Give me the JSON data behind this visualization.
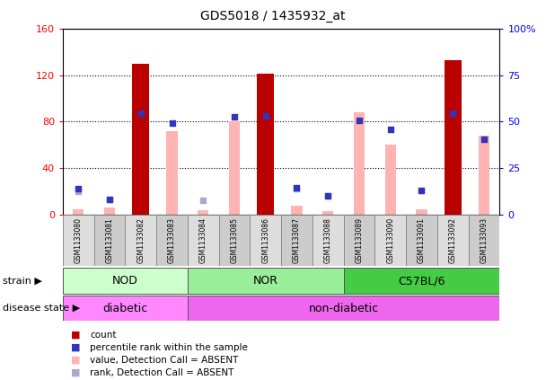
{
  "title": "GDS5018 / 1435932_at",
  "samples": [
    "GSM1133080",
    "GSM1133081",
    "GSM1133082",
    "GSM1133083",
    "GSM1133084",
    "GSM1133085",
    "GSM1133086",
    "GSM1133087",
    "GSM1133088",
    "GSM1133089",
    "GSM1133090",
    "GSM1133091",
    "GSM1133092",
    "GSM1133093"
  ],
  "count": [
    0,
    0,
    130,
    0,
    0,
    0,
    121,
    0,
    0,
    0,
    0,
    0,
    133,
    0
  ],
  "percentile_rank": [
    22,
    13,
    87,
    79,
    0,
    84,
    85,
    23,
    16,
    81,
    73,
    21,
    87,
    65
  ],
  "value_absent": [
    5,
    6,
    0,
    72,
    4,
    80,
    0,
    8,
    3,
    88,
    60,
    5,
    0,
    68
  ],
  "rank_absent": [
    20,
    13,
    0,
    0,
    12,
    0,
    0,
    22,
    16,
    0,
    0,
    21,
    0,
    0
  ],
  "ylim_left": [
    0,
    160
  ],
  "ylim_right": [
    0,
    100
  ],
  "yticks_left": [
    0,
    40,
    80,
    120,
    160
  ],
  "yticks_right": [
    0,
    25,
    50,
    75,
    100
  ],
  "ytick_labels_left": [
    "0",
    "40",
    "80",
    "120",
    "160"
  ],
  "ytick_labels_right": [
    "0",
    "25",
    "50",
    "75",
    "100%"
  ],
  "bar_color_red": "#bb0000",
  "bar_color_pink": "#ffb3b3",
  "dot_color_blue": "#3333bb",
  "dot_color_light_blue": "#aaaacc",
  "legend_items": [
    {
      "color": "#bb0000",
      "label": "count"
    },
    {
      "color": "#3333bb",
      "label": "percentile rank within the sample"
    },
    {
      "color": "#ffb3b3",
      "label": "value, Detection Call = ABSENT"
    },
    {
      "color": "#aaaacc",
      "label": "rank, Detection Call = ABSENT"
    }
  ],
  "strain_label": "strain",
  "disease_label": "disease state",
  "bar_width": 0.55,
  "pink_bar_width": 0.35,
  "dot_size": 18,
  "nod_color": "#ccffcc",
  "nor_color": "#99ee99",
  "c57_color": "#44cc44",
  "diabetic_color": "#ff88ff",
  "non_diabetic_color": "#ee66ee"
}
